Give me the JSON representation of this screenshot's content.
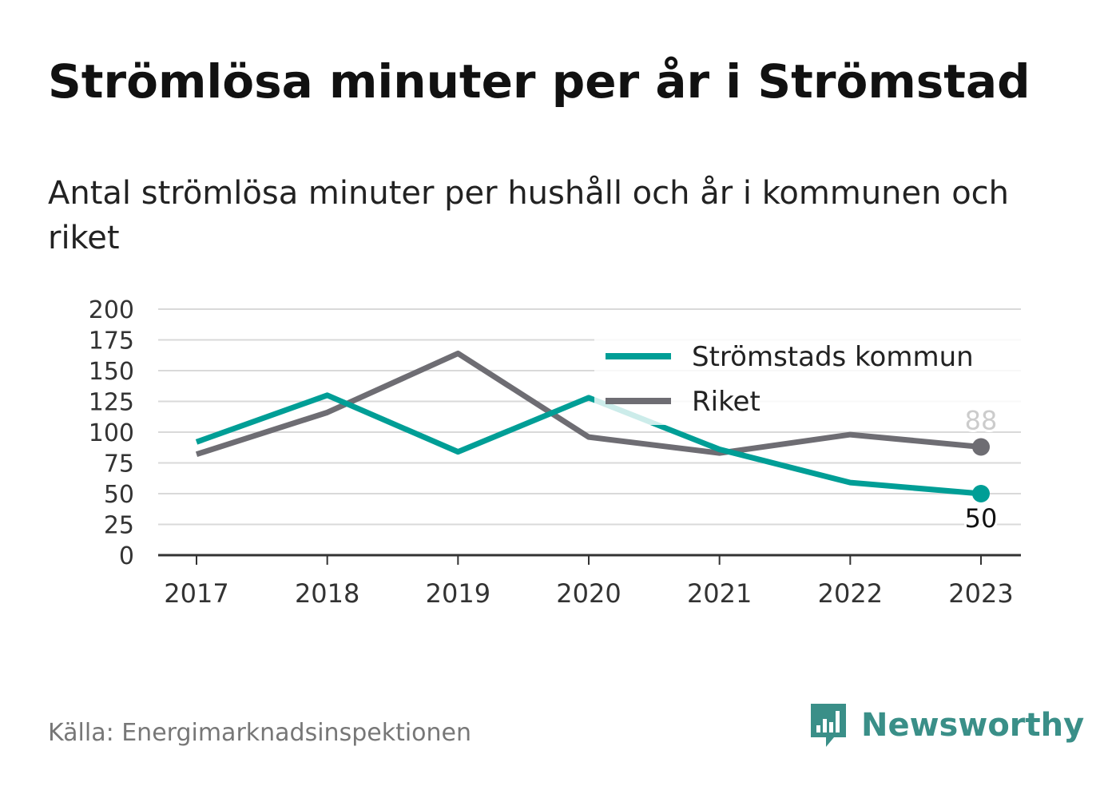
{
  "header": {
    "title": "Strömlösa minuter per år i Strömstad",
    "subtitle": "Antal strömlösa minuter per hushåll och år i kommunen och riket"
  },
  "footer": {
    "source": "Källa: Energimarknadsinspektionen",
    "brand": "Newsworthy",
    "brand_icon": "bar-chart-speech-bubble-icon"
  },
  "colors": {
    "kommun": "#009e96",
    "riket": "#6e6d73",
    "grid": "#d9d9d9",
    "axis": "#333333",
    "brand": "#3a8f88"
  },
  "chart_data": {
    "type": "line",
    "x": [
      "2017",
      "2018",
      "2019",
      "2020",
      "2021",
      "2022",
      "2023"
    ],
    "ylim": [
      0,
      200
    ],
    "yticks": [
      0,
      25,
      50,
      75,
      100,
      125,
      150,
      175,
      200
    ],
    "grid": true,
    "legend_position": "top-right",
    "series": [
      {
        "name": "Strömstads kommun",
        "values": [
          92,
          130,
          84,
          128,
          86,
          59,
          50
        ],
        "end_label": "50"
      },
      {
        "name": "Riket",
        "values": [
          82,
          116,
          164,
          96,
          83,
          98,
          88
        ],
        "end_label": "88"
      }
    ]
  }
}
